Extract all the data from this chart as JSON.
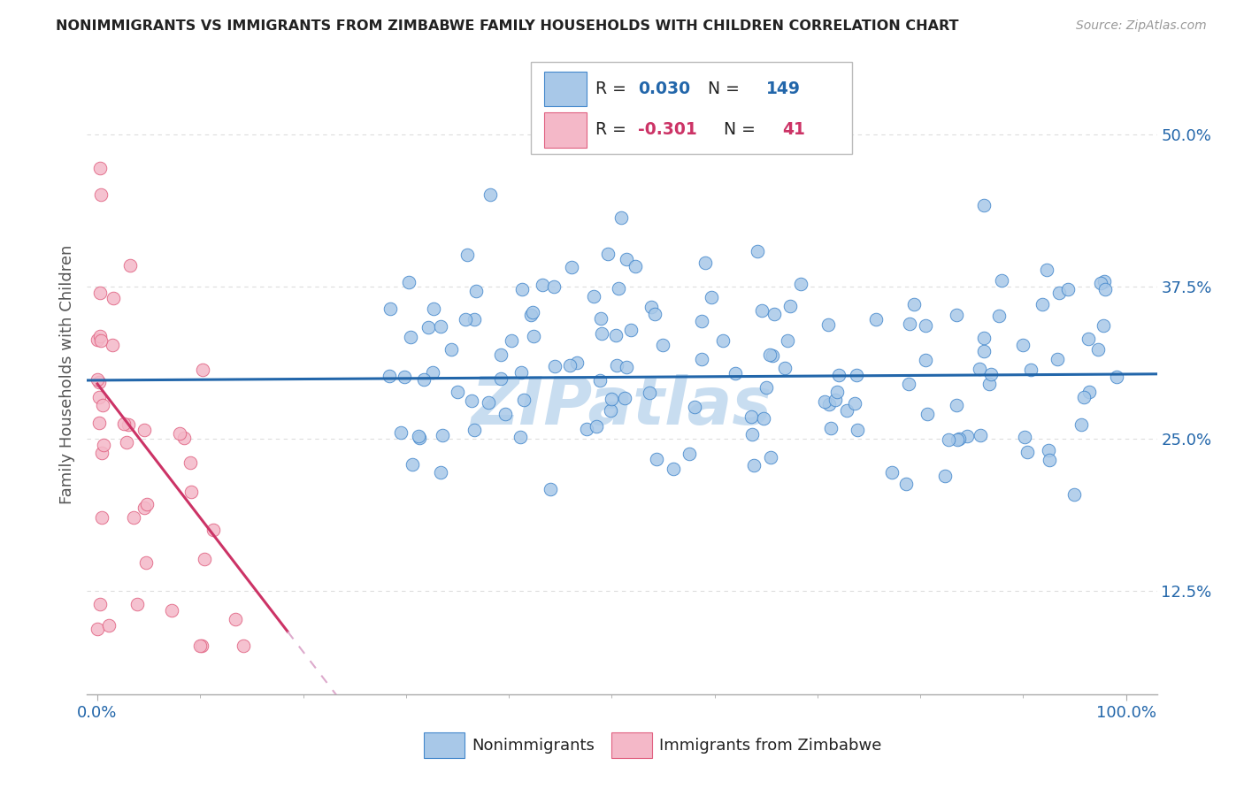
{
  "title": "NONIMMIGRANTS VS IMMIGRANTS FROM ZIMBABWE FAMILY HOUSEHOLDS WITH CHILDREN CORRELATION CHART",
  "source": "Source: ZipAtlas.com",
  "ylabel": "Family Households with Children",
  "yticks": [
    0.125,
    0.25,
    0.375,
    0.5
  ],
  "ytick_labels": [
    "12.5%",
    "25.0%",
    "37.5%",
    "50.0%"
  ],
  "blue_color": "#a8c8e8",
  "pink_color": "#f4b8c8",
  "blue_edge_color": "#4488cc",
  "pink_edge_color": "#e06080",
  "blue_line_color": "#2266aa",
  "pink_line_color": "#cc3366",
  "pink_dash_color": "#ddaacc",
  "background_color": "#ffffff",
  "grid_color": "#dddddd",
  "title_color": "#222222",
  "axis_label_color": "#555555",
  "ytick_color": "#2266aa",
  "xtick_color": "#2266aa",
  "watermark": "ZIPatlas",
  "watermark_color": "#c8ddf0",
  "legend_box_color": "#dddddd",
  "blue_r": "0.030",
  "blue_n": "149",
  "pink_r": "-0.301",
  "pink_n": "41",
  "blue_line_intercept": 0.298,
  "blue_line_slope": 0.005,
  "pink_solid_intercept": 0.295,
  "pink_solid_slope": -1.1,
  "pink_dash_intercept": 0.295,
  "pink_dash_slope": -1.1
}
